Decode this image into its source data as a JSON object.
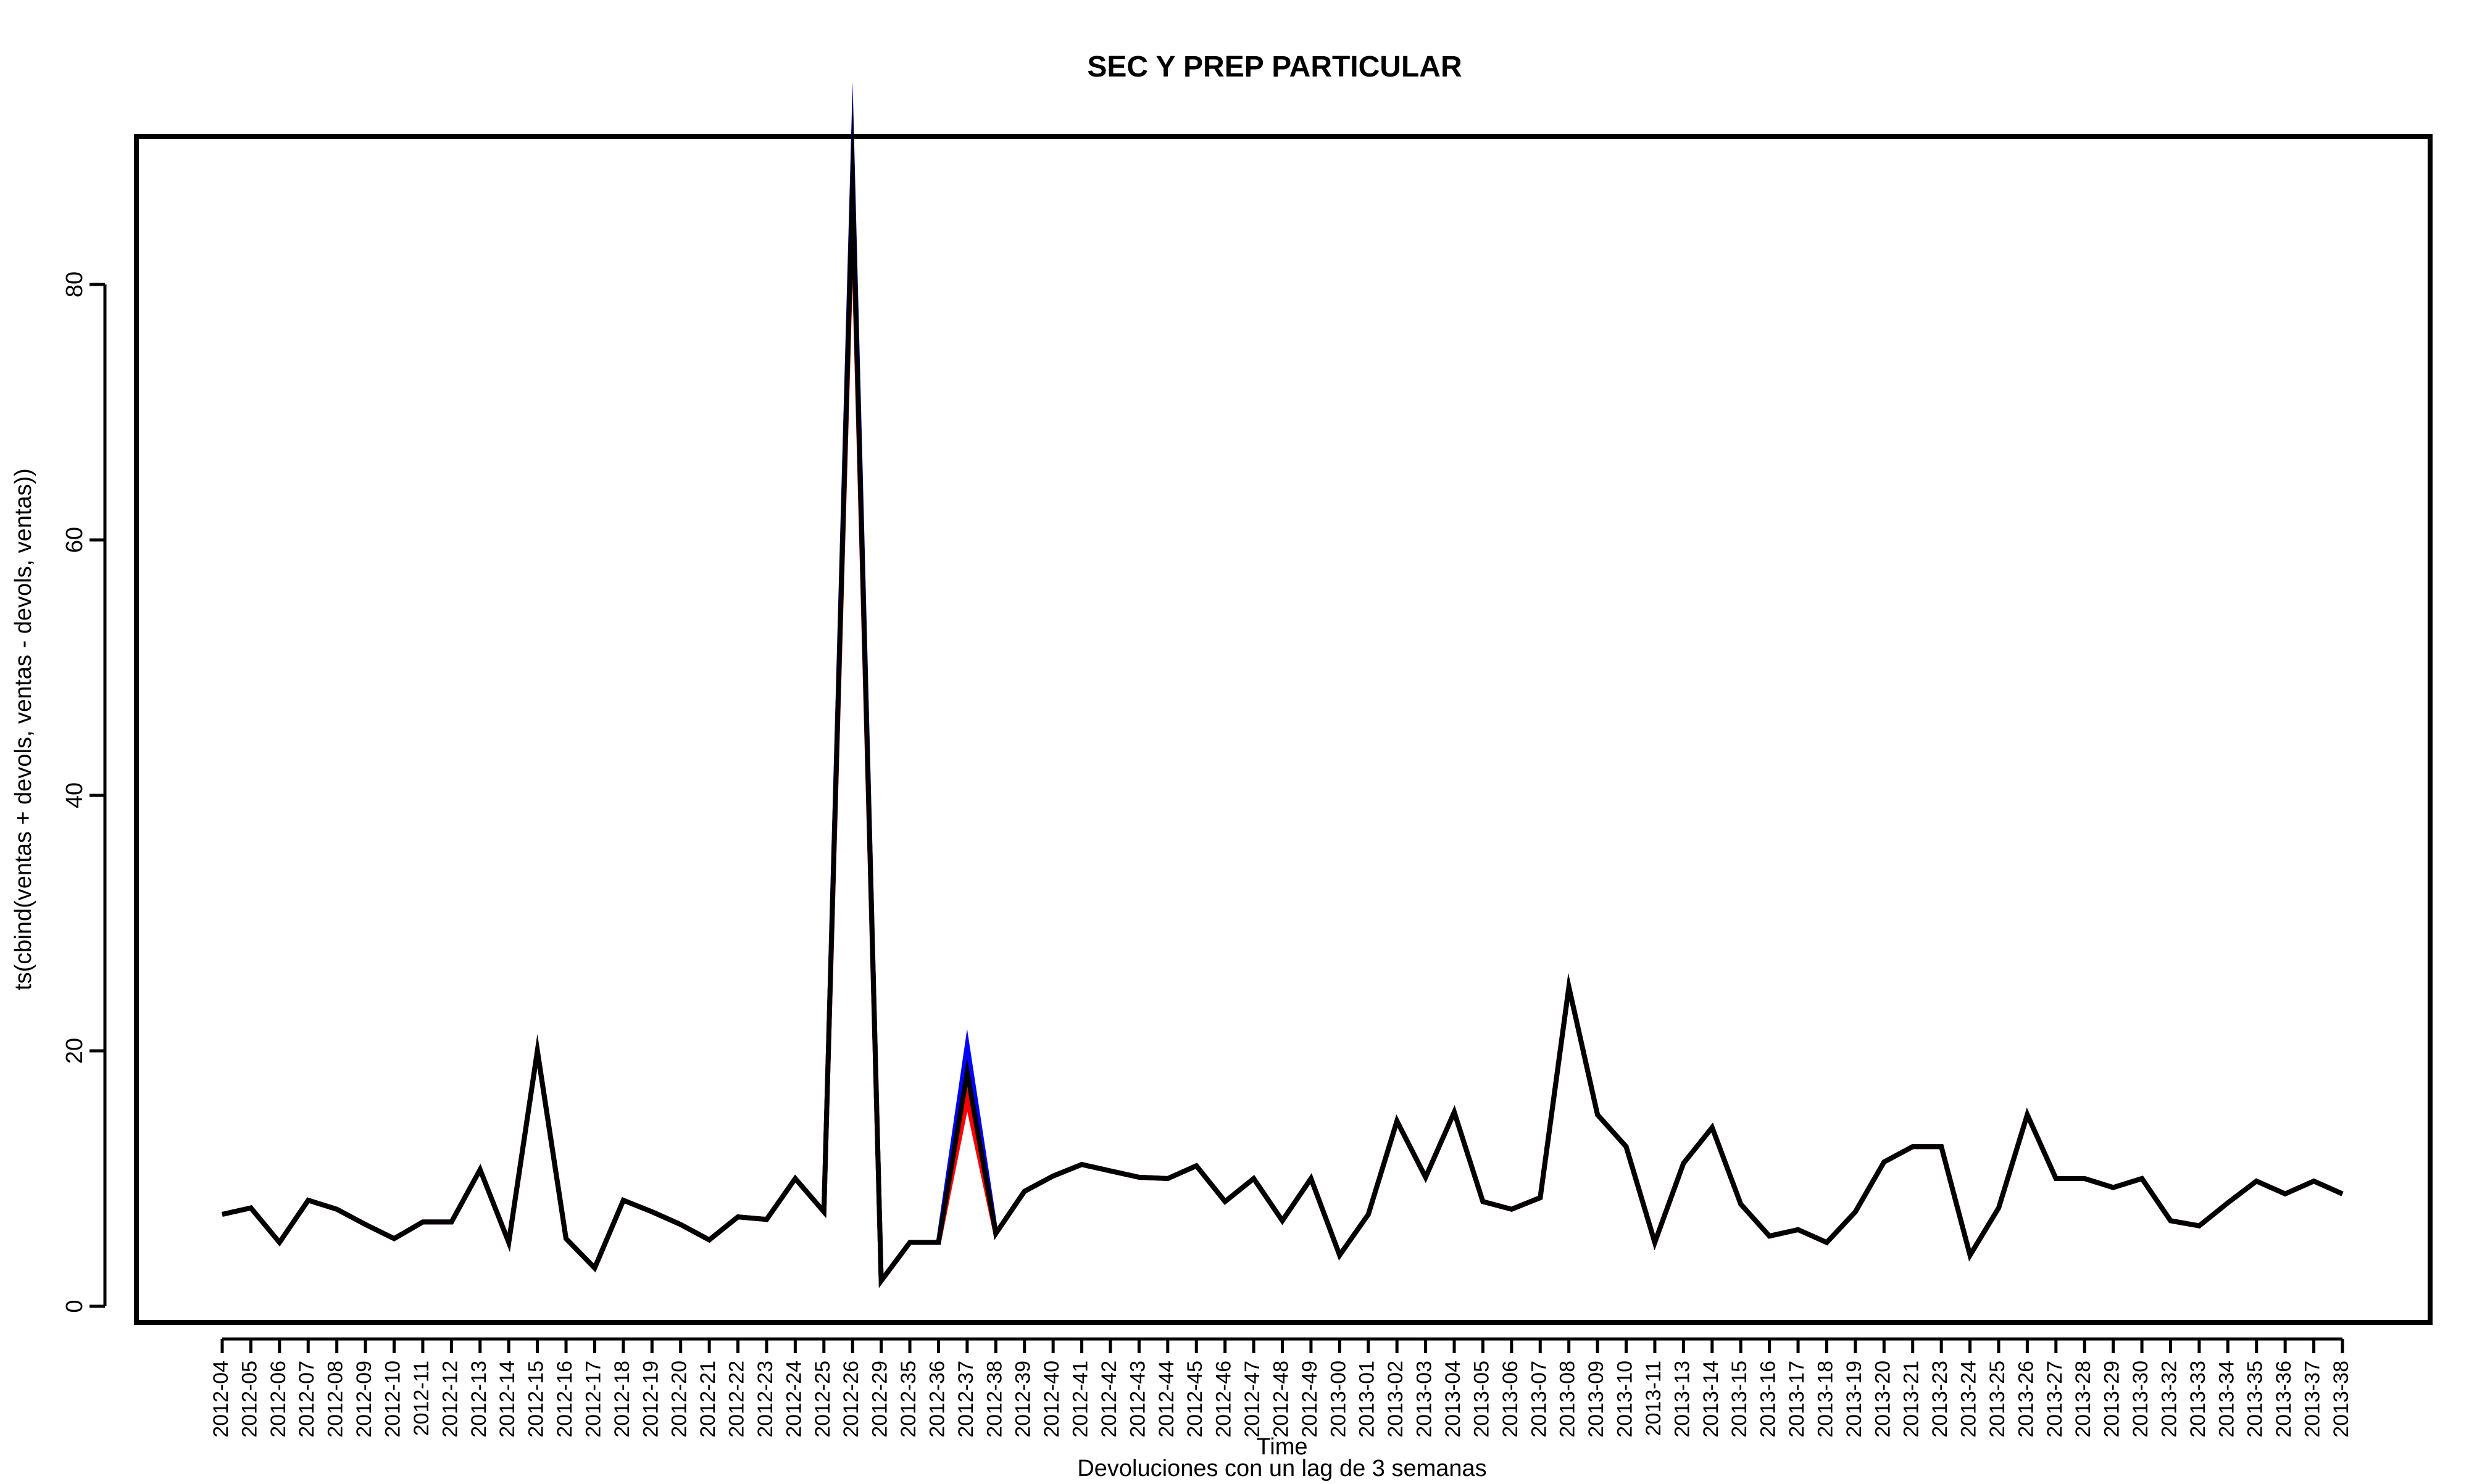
{
  "chart_data": {
    "type": "line",
    "title": "SEC Y PREP PARTICULAR",
    "xlabel": "Time",
    "subtitle": "Devoluciones con un lag de 3 semanas",
    "ylabel": "ts(cbind(ventas + devols, ventas - devols, ventas))",
    "ylim": [
      0,
      90
    ],
    "yticks": [
      0,
      20,
      40,
      60,
      80
    ],
    "grid": false,
    "categories": [
      "2012-04",
      "2012-05",
      "2012-06",
      "2012-07",
      "2012-08",
      "2012-09",
      "2012-10",
      "2012-11",
      "2012-12",
      "2012-13",
      "2012-14",
      "2012-15",
      "2012-16",
      "2012-17",
      "2012-18",
      "2012-19",
      "2012-20",
      "2012-21",
      "2012-22",
      "2012-23",
      "2012-24",
      "2012-25",
      "2012-26",
      "2012-29",
      "2012-35",
      "2012-36",
      "2012-37",
      "2012-38",
      "2012-39",
      "2012-40",
      "2012-41",
      "2012-42",
      "2012-43",
      "2012-44",
      "2012-45",
      "2012-46",
      "2012-47",
      "2012-48",
      "2012-49",
      "2013-00",
      "2013-01",
      "2013-02",
      "2013-03",
      "2013-04",
      "2013-05",
      "2013-06",
      "2013-07",
      "2013-08",
      "2013-09",
      "2013-10",
      "2013-11",
      "2013-13",
      "2013-14",
      "2013-15",
      "2013-16",
      "2013-17",
      "2013-18",
      "2013-19",
      "2013-20",
      "2013-21",
      "2013-23",
      "2013-24",
      "2013-25",
      "2013-26",
      "2013-27",
      "2013-28",
      "2013-29",
      "2013-30",
      "2013-32",
      "2013-33",
      "2013-34",
      "2013-35",
      "2013-36",
      "2013-37",
      "2013-38"
    ],
    "series": [
      {
        "color": "#0000ff",
        "values": [
          7.2,
          7.7,
          5,
          8.3,
          7.6,
          6.4,
          5.3,
          6.6,
          6.6,
          10.7,
          5,
          20,
          5.3,
          3,
          8.3,
          7.4,
          6.4,
          5.2,
          7,
          6.8,
          10,
          7.4,
          88.6,
          2,
          5,
          5,
          20.4,
          5.7,
          9,
          10.2,
          11.1,
          10.6,
          10.1,
          10,
          11,
          8.2,
          10,
          6.7,
          10,
          4,
          7.2,
          14.5,
          10.1,
          15.2,
          8.2,
          7.6,
          8.5,
          25,
          15,
          12.5,
          5,
          11.2,
          14,
          8,
          5.5,
          6,
          5,
          7.4,
          11.3,
          12.5,
          12.5,
          4,
          7.7,
          15,
          10,
          10,
          9.3,
          10,
          6.7,
          6.3,
          8.1,
          9.8,
          8.8,
          9.8,
          8.8
        ]
      },
      {
        "color": "#ff0000",
        "values": [
          7.2,
          7.7,
          5,
          8.3,
          7.6,
          6.4,
          5.3,
          6.6,
          6.6,
          10.7,
          5,
          20,
          5.3,
          3,
          8.3,
          7.4,
          6.4,
          5.2,
          7,
          6.8,
          10,
          7.4,
          87,
          2,
          5,
          5,
          16.2,
          5.7,
          9,
          10.2,
          11.1,
          10.6,
          10.1,
          10,
          11,
          8.2,
          10,
          6.7,
          10,
          4,
          7.2,
          14.5,
          10.1,
          15.2,
          8.2,
          7.6,
          8.5,
          25,
          15,
          12.5,
          5,
          11.2,
          14,
          8,
          5.5,
          6,
          5,
          7.4,
          11.3,
          12.5,
          12.5,
          4,
          7.7,
          15,
          10,
          10,
          9.3,
          10,
          6.7,
          6.3,
          8.1,
          9.8,
          8.8,
          9.8,
          8.8
        ]
      },
      {
        "color": "#000000",
        "values": [
          7.2,
          7.7,
          5,
          8.3,
          7.6,
          6.4,
          5.3,
          6.6,
          6.6,
          10.7,
          5,
          20,
          5.3,
          3,
          8.3,
          7.4,
          6.4,
          5.2,
          7,
          6.8,
          10,
          7.4,
          87.8,
          2,
          5,
          5,
          18.3,
          5.7,
          9,
          10.2,
          11.1,
          10.6,
          10.1,
          10,
          11,
          8.2,
          10,
          6.7,
          10,
          4,
          7.2,
          14.5,
          10.1,
          15.2,
          8.2,
          7.6,
          8.5,
          25,
          15,
          12.5,
          5,
          11.2,
          14,
          8,
          5.5,
          6,
          5,
          7.4,
          11.3,
          12.5,
          12.5,
          4,
          7.7,
          15,
          10,
          10,
          9.3,
          10,
          6.7,
          6.3,
          8.1,
          9.8,
          8.8,
          9.8,
          8.8
        ]
      }
    ]
  }
}
